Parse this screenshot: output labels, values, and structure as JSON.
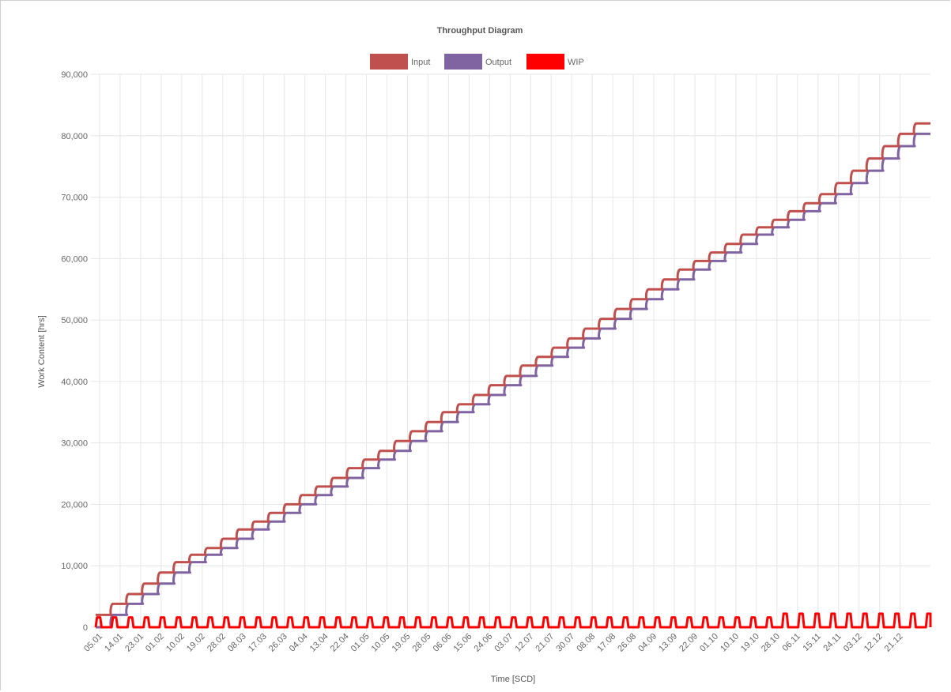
{
  "chart_data": {
    "type": "line",
    "title": "Throughput Diagram",
    "xlabel": "Time [SCD]",
    "ylabel": "Work Content [hrs]",
    "ylim": [
      0,
      90000
    ],
    "yticks": [
      "0",
      "10,000",
      "20,000",
      "30,000",
      "40,000",
      "50,000",
      "60,000",
      "70,000",
      "80,000",
      "90,000"
    ],
    "x_ticks": [
      "05.01",
      "14.01",
      "23.01",
      "01.02",
      "10.02",
      "19.02",
      "28.02",
      "08.03",
      "17.03",
      "26.03",
      "04.04",
      "13.04",
      "22.04",
      "01.05",
      "10.05",
      "19.05",
      "28.05",
      "06.06",
      "15.06",
      "24.06",
      "03.07",
      "12.07",
      "21.07",
      "30.07",
      "08.08",
      "17.08",
      "26.08",
      "04.09",
      "13.09",
      "22.09",
      "01.10",
      "10.10",
      "19.10",
      "28.10",
      "06.11",
      "15.11",
      "24.11",
      "03.12",
      "12.12",
      "21.12"
    ],
    "grid": true,
    "legend_position": "top",
    "series": [
      {
        "name": "Input",
        "color": "#c0504d",
        "kind": "step",
        "values": [
          2000,
          3800,
          5400,
          7100,
          8900,
          10600,
          11800,
          12900,
          14400,
          15900,
          17200,
          18600,
          20000,
          21500,
          22900,
          24300,
          25900,
          27300,
          28700,
          30300,
          31900,
          33400,
          35000,
          36300,
          37800,
          39400,
          40900,
          42600,
          44000,
          45500,
          47000,
          48600,
          50200,
          51800,
          53400,
          55000,
          56600,
          58200,
          59600,
          61000,
          62400,
          63900,
          65100,
          66300,
          67700,
          69000,
          70500,
          72300,
          74300,
          76300,
          78300,
          80300,
          82000
        ],
        "x_start": 0,
        "x_end": 366
      },
      {
        "name": "Output",
        "color": "#8064a2",
        "kind": "step",
        "values": [
          0,
          2000,
          3800,
          5400,
          7100,
          8900,
          10600,
          11800,
          12900,
          14400,
          15900,
          17200,
          18600,
          20000,
          21500,
          22900,
          24300,
          25900,
          27300,
          28700,
          30300,
          31900,
          33400,
          35000,
          36300,
          37800,
          39400,
          40900,
          42600,
          44000,
          45500,
          47000,
          48600,
          50200,
          51800,
          53400,
          55000,
          56600,
          58200,
          59600,
          61000,
          62400,
          63900,
          65100,
          66300,
          67700,
          69000,
          70500,
          72300,
          74300,
          76300,
          78300,
          80300
        ],
        "x_start": 0,
        "x_end": 366
      },
      {
        "name": "WIP",
        "color": "#ff0000",
        "kind": "pulse",
        "base": 0,
        "peak": 1600,
        "peak_late": 2200,
        "period_days": 7
      }
    ]
  }
}
